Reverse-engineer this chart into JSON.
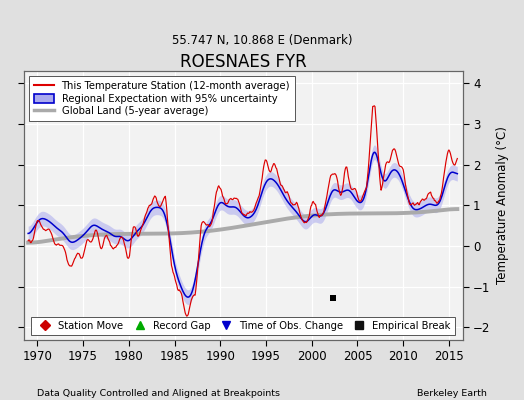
{
  "title": "ROESNAES FYR",
  "subtitle": "55.747 N, 10.868 E (Denmark)",
  "xlabel_left": "Data Quality Controlled and Aligned at Breakpoints",
  "xlabel_right": "Berkeley Earth",
  "ylabel": "Temperature Anomaly (°C)",
  "xlim": [
    1968.5,
    2016.5
  ],
  "ylim": [
    -2.3,
    4.3
  ],
  "yticks": [
    -2,
    -1,
    0,
    1,
    2,
    3,
    4
  ],
  "xticks": [
    1970,
    1975,
    1980,
    1985,
    1990,
    1995,
    2000,
    2005,
    2010,
    2015
  ],
  "background_color": "#e0e0e0",
  "plot_bg_color": "#f2f2f2",
  "station_color": "#dd0000",
  "regional_color": "#0000cc",
  "regional_fill_color": "#aaaaee",
  "global_color": "#aaaaaa",
  "legend_items": [
    "This Temperature Station (12-month average)",
    "Regional Expectation with 95% uncertainty",
    "Global Land (5-year average)"
  ],
  "marker_legend": [
    {
      "label": "Station Move",
      "color": "#cc0000",
      "marker": "D"
    },
    {
      "label": "Record Gap",
      "color": "#00aa00",
      "marker": "^"
    },
    {
      "label": "Time of Obs. Change",
      "color": "#0000cc",
      "marker": "v"
    },
    {
      "label": "Empirical Break",
      "color": "#111111",
      "marker": "s"
    }
  ],
  "empirical_break_x": 2002.3,
  "empirical_break_y": -1.28
}
